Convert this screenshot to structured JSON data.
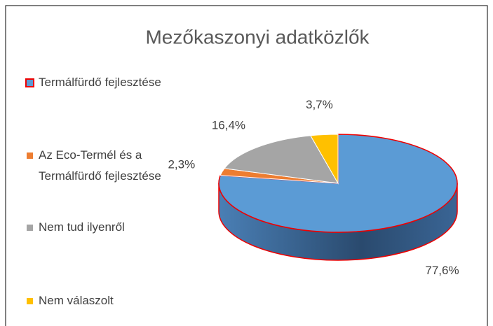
{
  "chart_data": {
    "type": "pie",
    "title": "Mezőkaszonyi adatközlők",
    "categories": [
      "Termálfürdő fejlesztése",
      "Az Eco-Termél és a Termálfürdő fejlesztése",
      "Nem tud ilyenről",
      "Nem válaszolt"
    ],
    "values": [
      77.6,
      2.3,
      16.4,
      3.7
    ],
    "value_labels": [
      "77,6%",
      "2,3%",
      "16,4%",
      "3,7%"
    ],
    "colors": [
      "#5b9bd5",
      "#ed7d31",
      "#a5a5a5",
      "#ffc000"
    ],
    "legend": "left"
  }
}
